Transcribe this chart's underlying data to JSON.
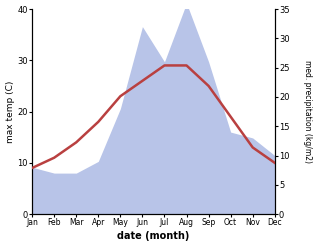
{
  "months": [
    "Jan",
    "Feb",
    "Mar",
    "Apr",
    "May",
    "Jun",
    "Jul",
    "Aug",
    "Sep",
    "Oct",
    "Nov",
    "Dec"
  ],
  "month_indices": [
    0,
    1,
    2,
    3,
    4,
    5,
    6,
    7,
    8,
    9,
    10,
    11
  ],
  "temp_max": [
    9,
    11,
    14,
    18,
    23,
    26,
    29,
    29,
    25,
    19,
    13,
    10
  ],
  "precipitation": [
    8,
    7,
    7,
    9,
    18,
    32,
    26,
    36,
    26,
    14,
    13,
    10
  ],
  "temp_color": "#b94040",
  "precip_color": "#b8c4e8",
  "temp_ylim": [
    0,
    40
  ],
  "precip_ylim": [
    0,
    35
  ],
  "temp_yticks": [
    0,
    10,
    20,
    30,
    40
  ],
  "precip_yticks": [
    0,
    5,
    10,
    15,
    20,
    25,
    30,
    35
  ],
  "xlabel": "date (month)",
  "ylabel_left": "max temp (C)",
  "ylabel_right": "med. precipitation (kg/m2)",
  "bg_color": "#ffffff",
  "fig_width": 3.18,
  "fig_height": 2.47,
  "dpi": 100
}
